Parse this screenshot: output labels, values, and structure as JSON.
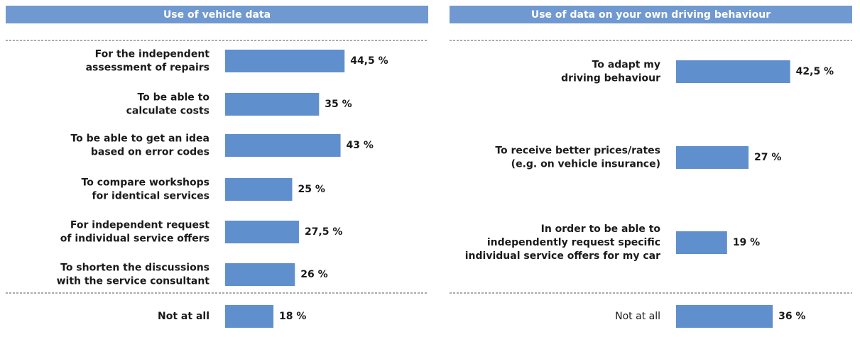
{
  "chart_data": [
    {
      "type": "bar",
      "orientation": "horizontal",
      "title": "Use of vehicle data",
      "color": "#5f8fcd",
      "categories": [
        [
          "For the independent",
          "assessment of repairs"
        ],
        [
          "To be able to",
          "calculate costs"
        ],
        [
          "To be able to get an idea",
          "based on error codes"
        ],
        [
          "To compare workshops",
          "for identical services"
        ],
        [
          "For independent request",
          "of individual service offers"
        ],
        [
          "To shorten the discussions",
          "with the service consultant"
        ],
        [
          "Not at all"
        ]
      ],
      "values": [
        44.5,
        35,
        43,
        25,
        27.5,
        26,
        18
      ],
      "value_labels": [
        "44,5 %",
        "35 %",
        "43 %",
        "25 %",
        "27,5 %",
        "26 %",
        "18 %"
      ]
    },
    {
      "type": "bar",
      "orientation": "horizontal",
      "title": "Use of data on your own driving behaviour",
      "color": "#5f8fcd",
      "categories": [
        [
          "To adapt my",
          "driving behaviour"
        ],
        [
          "To receive better prices/rates",
          "(e.g. on vehicle insurance)"
        ],
        [
          "In order to be able to",
          "independently request specific",
          "individual service offers for my car"
        ],
        [
          "Not at all"
        ]
      ],
      "values": [
        42.5,
        27,
        19,
        36
      ],
      "value_labels": [
        "42,5 %",
        "27 %",
        "19 %",
        "36 %"
      ]
    }
  ]
}
